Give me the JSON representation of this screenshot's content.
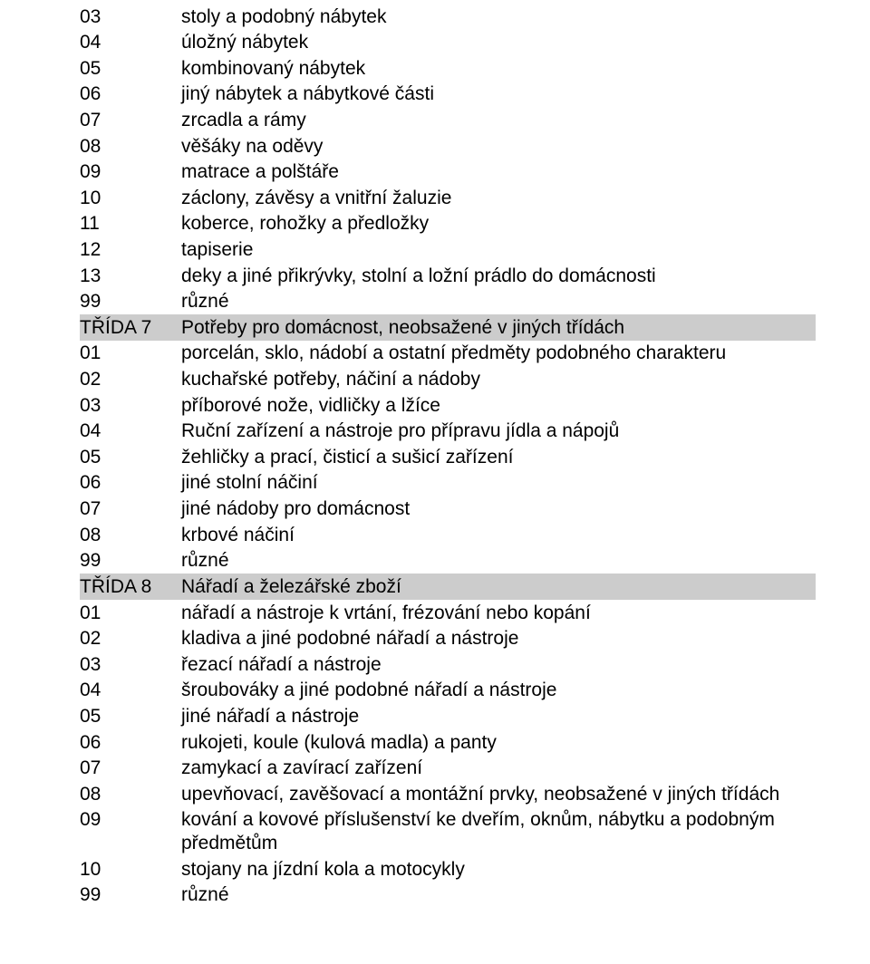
{
  "colors": {
    "background": "#ffffff",
    "text": "#000000",
    "heading_bg": "#cccccc"
  },
  "typography": {
    "font_family": "Arial",
    "font_size_pt": 16,
    "font_weight": "normal"
  },
  "rows": [
    {
      "code": "03",
      "text": "stoly a podobný nábytek",
      "heading": false
    },
    {
      "code": "04",
      "text": "úložný nábytek",
      "heading": false
    },
    {
      "code": "05",
      "text": "kombinovaný nábytek",
      "heading": false
    },
    {
      "code": "06",
      "text": "jiný nábytek a nábytkové části",
      "heading": false
    },
    {
      "code": "07",
      "text": "zrcadla a rámy",
      "heading": false
    },
    {
      "code": "08",
      "text": "věšáky na oděvy",
      "heading": false
    },
    {
      "code": "09",
      "text": "matrace a polštáře",
      "heading": false
    },
    {
      "code": "10",
      "text": "záclony, závěsy a vnitřní žaluzie",
      "heading": false
    },
    {
      "code": "11",
      "text": "koberce, rohožky a předložky",
      "heading": false
    },
    {
      "code": "12",
      "text": "tapiserie",
      "heading": false
    },
    {
      "code": "13",
      "text": "deky a jiné přikrývky, stolní a ložní prádlo do domácnosti",
      "heading": false
    },
    {
      "code": "99",
      "text": "různé",
      "heading": false
    },
    {
      "code": "TŘÍDA 7",
      "text": "Potřeby pro domácnost, neobsažené v jiných třídách",
      "heading": true
    },
    {
      "code": "01",
      "text": "porcelán, sklo, nádobí a ostatní předměty podobného charakteru",
      "heading": false
    },
    {
      "code": "02",
      "text": "kuchařské potřeby, náčiní a nádoby",
      "heading": false
    },
    {
      "code": "03",
      "text": "příborové nože, vidličky a lžíce",
      "heading": false
    },
    {
      "code": "04",
      "text": "Ruční zařízení a nástroje pro přípravu jídla a nápojů",
      "heading": false
    },
    {
      "code": "05",
      "text": "žehličky a prací, čisticí a sušicí zařízení",
      "heading": false
    },
    {
      "code": "06",
      "text": "jiné stolní náčiní",
      "heading": false
    },
    {
      "code": "07",
      "text": "jiné nádoby pro domácnost",
      "heading": false
    },
    {
      "code": "08",
      "text": "krbové náčiní",
      "heading": false
    },
    {
      "code": "99",
      "text": "různé",
      "heading": false
    },
    {
      "code": "TŘÍDA 8",
      "text": "Nářadí a železářské zboží",
      "heading": true
    },
    {
      "code": "01",
      "text": "nářadí a nástroje k vrtání, frézování nebo kopání",
      "heading": false
    },
    {
      "code": "02",
      "text": "kladiva a jiné podobné nářadí a nástroje",
      "heading": false
    },
    {
      "code": "03",
      "text": "řezací nářadí a nástroje",
      "heading": false
    },
    {
      "code": "04",
      "text": "šroubováky a jiné podobné nářadí a nástroje",
      "heading": false
    },
    {
      "code": "05",
      "text": "jiné nářadí a nástroje",
      "heading": false
    },
    {
      "code": "06",
      "text": "rukojeti, koule (kulová madla) a panty",
      "heading": false
    },
    {
      "code": "07",
      "text": "zamykací a zavírací zařízení",
      "heading": false
    },
    {
      "code": "08",
      "text": "upevňovací, zavěšovací a montážní prvky, neobsažené v jiných třídách",
      "heading": false
    },
    {
      "code": "09",
      "text": "kování a kovové příslušenství ke dveřím, oknům, nábytku a podobným předmětům",
      "heading": false
    },
    {
      "code": "10",
      "text": "stojany na jízdní kola a motocykly",
      "heading": false
    },
    {
      "code": "99",
      "text": "různé",
      "heading": false
    }
  ]
}
